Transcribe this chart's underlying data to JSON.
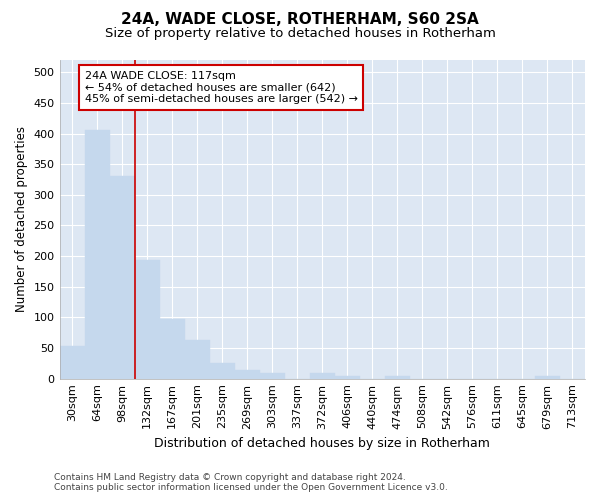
{
  "title": "24A, WADE CLOSE, ROTHERHAM, S60 2SA",
  "subtitle": "Size of property relative to detached houses in Rotherham",
  "xlabel": "Distribution of detached houses by size in Rotherham",
  "ylabel": "Number of detached properties",
  "bar_color": "#c5d8ed",
  "bar_edge_color": "#c5d8ed",
  "background_color": "#dde7f3",
  "grid_color": "#ffffff",
  "categories": [
    "30sqm",
    "64sqm",
    "98sqm",
    "132sqm",
    "167sqm",
    "201sqm",
    "235sqm",
    "269sqm",
    "303sqm",
    "337sqm",
    "372sqm",
    "406sqm",
    "440sqm",
    "474sqm",
    "508sqm",
    "542sqm",
    "576sqm",
    "611sqm",
    "645sqm",
    "679sqm",
    "713sqm"
  ],
  "values": [
    53,
    406,
    330,
    193,
    97,
    63,
    25,
    14,
    9,
    0,
    10,
    5,
    0,
    4,
    0,
    0,
    0,
    0,
    0,
    4,
    0
  ],
  "red_line_x": 2.5,
  "annotation_text": "24A WADE CLOSE: 117sqm\n← 54% of detached houses are smaller (642)\n45% of semi-detached houses are larger (542) →",
  "annotation_box_color": "#ffffff",
  "annotation_border_color": "#cc0000",
  "ylim": [
    0,
    520
  ],
  "yticks": [
    0,
    50,
    100,
    150,
    200,
    250,
    300,
    350,
    400,
    450,
    500
  ],
  "footnote": "Contains HM Land Registry data © Crown copyright and database right 2024.\nContains public sector information licensed under the Open Government Licence v3.0.",
  "title_fontsize": 11,
  "subtitle_fontsize": 9.5,
  "xlabel_fontsize": 9,
  "ylabel_fontsize": 8.5,
  "tick_fontsize": 8,
  "annot_fontsize": 8,
  "footnote_fontsize": 6.5
}
